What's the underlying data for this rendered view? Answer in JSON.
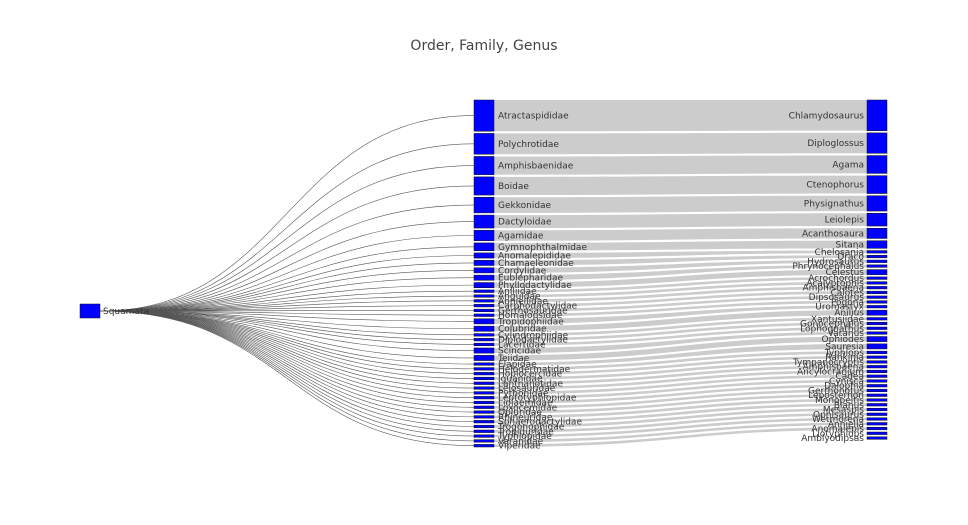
{
  "chart_data": {
    "type": "sankey",
    "title": "Order, Family, Genus",
    "colors": {
      "node": "#0000ff",
      "node_stroke": "#111111",
      "link": "#cccccc",
      "link_stroke": "#555555"
    },
    "root": "Squamata",
    "families": [
      {
        "name": "Atractaspididae",
        "value": 12
      },
      {
        "name": "Polychrotidae",
        "value": 8
      },
      {
        "name": "Amphisbaenidae",
        "value": 7
      },
      {
        "name": "Boidae",
        "value": 7
      },
      {
        "name": "Gekkonidae",
        "value": 6
      },
      {
        "name": "Dactyloidae",
        "value": 5
      },
      {
        "name": "Agamidae",
        "value": 4
      },
      {
        "name": "Gymnophthalmidae",
        "value": 3
      },
      {
        "name": "Anomalepididae",
        "value": 2
      },
      {
        "name": "Chamaeleonidae",
        "value": 2
      },
      {
        "name": "Cordylidae",
        "value": 2
      },
      {
        "name": "Eublepharidae",
        "value": 2
      },
      {
        "name": "Phyllodactylidae",
        "value": 2
      },
      {
        "name": "Aniliidae",
        "value": 1
      },
      {
        "name": "Anguidae",
        "value": 1
      },
      {
        "name": "Anniellidae",
        "value": 1
      },
      {
        "name": "Carphodactylidae",
        "value": 1
      },
      {
        "name": "Gerrhosauridae",
        "value": 1
      },
      {
        "name": "Homalopsidae",
        "value": 1
      },
      {
        "name": "Tropidophiidae",
        "value": 2
      },
      {
        "name": "Colubridae",
        "value": 2
      },
      {
        "name": "Cylindrophiidae",
        "value": 1
      },
      {
        "name": "Diplodactylidae",
        "value": 1
      },
      {
        "name": "Lacertidae",
        "value": 1
      },
      {
        "name": "Scincidae",
        "value": 2
      },
      {
        "name": "Teiidae",
        "value": 2
      },
      {
        "name": "Elapidae",
        "value": 1
      },
      {
        "name": "Helodermatidae",
        "value": 1
      },
      {
        "name": "Hoplocercidae",
        "value": 1
      },
      {
        "name": "Iguanidae",
        "value": 1
      },
      {
        "name": "Lanthanotidae",
        "value": 1
      },
      {
        "name": "Leiosauridae",
        "value": 1
      },
      {
        "name": "Pythonidae",
        "value": 1
      },
      {
        "name": "Leptotyphlopidae",
        "value": 1
      },
      {
        "name": "Liolaemidae",
        "value": 1
      },
      {
        "name": "Loxocemidae",
        "value": 1
      },
      {
        "name": "Opluridae",
        "value": 1
      },
      {
        "name": "Rhineuridae",
        "value": 1
      },
      {
        "name": "Sphaerodactylidae",
        "value": 1
      },
      {
        "name": "Trogonophidae",
        "value": 1
      },
      {
        "name": "Tropiduridae",
        "value": 1
      },
      {
        "name": "Typhlopidae",
        "value": 1
      },
      {
        "name": "Varanidae",
        "value": 1
      },
      {
        "name": "Viperidae",
        "value": 1
      }
    ],
    "genera": [
      {
        "name": "Chlamydosaurus",
        "value": 12
      },
      {
        "name": "Diploglossus",
        "value": 8
      },
      {
        "name": "Agama",
        "value": 7
      },
      {
        "name": "Ctenophorus",
        "value": 7
      },
      {
        "name": "Physignathus",
        "value": 6
      },
      {
        "name": "Leiolepis",
        "value": 5
      },
      {
        "name": "Acanthosaura",
        "value": 4
      },
      {
        "name": "Sitana",
        "value": 3
      },
      {
        "name": "Chelosania",
        "value": 1
      },
      {
        "name": "Draco",
        "value": 1
      },
      {
        "name": "Hydrosaurus",
        "value": 1
      },
      {
        "name": "Phrynocephalus",
        "value": 1
      },
      {
        "name": "Celestus",
        "value": 2
      },
      {
        "name": "Acrochordus",
        "value": 1
      },
      {
        "name": "Acalyptophis",
        "value": 1
      },
      {
        "name": "Amphisbaena",
        "value": 1
      },
      {
        "name": "Calotes",
        "value": 1
      },
      {
        "name": "Dipsosaurus",
        "value": 1
      },
      {
        "name": "Pogona",
        "value": 1
      },
      {
        "name": "Uromastyx",
        "value": 1
      },
      {
        "name": "Anilius",
        "value": 2
      },
      {
        "name": "Xantusiidae",
        "value": 1
      },
      {
        "name": "Gonocephalus",
        "value": 1
      },
      {
        "name": "Lophognathus",
        "value": 1
      },
      {
        "name": "Varanus",
        "value": 1
      },
      {
        "name": "Ophiodes",
        "value": 2
      },
      {
        "name": "Sauresia",
        "value": 2
      },
      {
        "name": "Typhlops",
        "value": 1
      },
      {
        "name": "Rankinia",
        "value": 1
      },
      {
        "name": "Tympanocryptis",
        "value": 1
      },
      {
        "name": "Amphisbaena",
        "value": 1
      },
      {
        "name": "Ancylocranium",
        "value": 1
      },
      {
        "name": "Cadea",
        "value": 1
      },
      {
        "name": "Cynisca",
        "value": 1
      },
      {
        "name": "Dalophia",
        "value": 1
      },
      {
        "name": "Gerrhonotus",
        "value": 1
      },
      {
        "name": "Leposternon",
        "value": 1
      },
      {
        "name": "Monopeltis",
        "value": 1
      },
      {
        "name": "Blanus",
        "value": 1
      },
      {
        "name": "Mesaspis",
        "value": 1
      },
      {
        "name": "Ophisaurus",
        "value": 1
      },
      {
        "name": "Wetmorena",
        "value": 1
      },
      {
        "name": "Anniella",
        "value": 1
      },
      {
        "name": "Anomalepis",
        "value": 1
      },
      {
        "name": "Liotyphlops",
        "value": 1
      },
      {
        "name": "Amblyodipsas",
        "value": 1
      }
    ]
  }
}
